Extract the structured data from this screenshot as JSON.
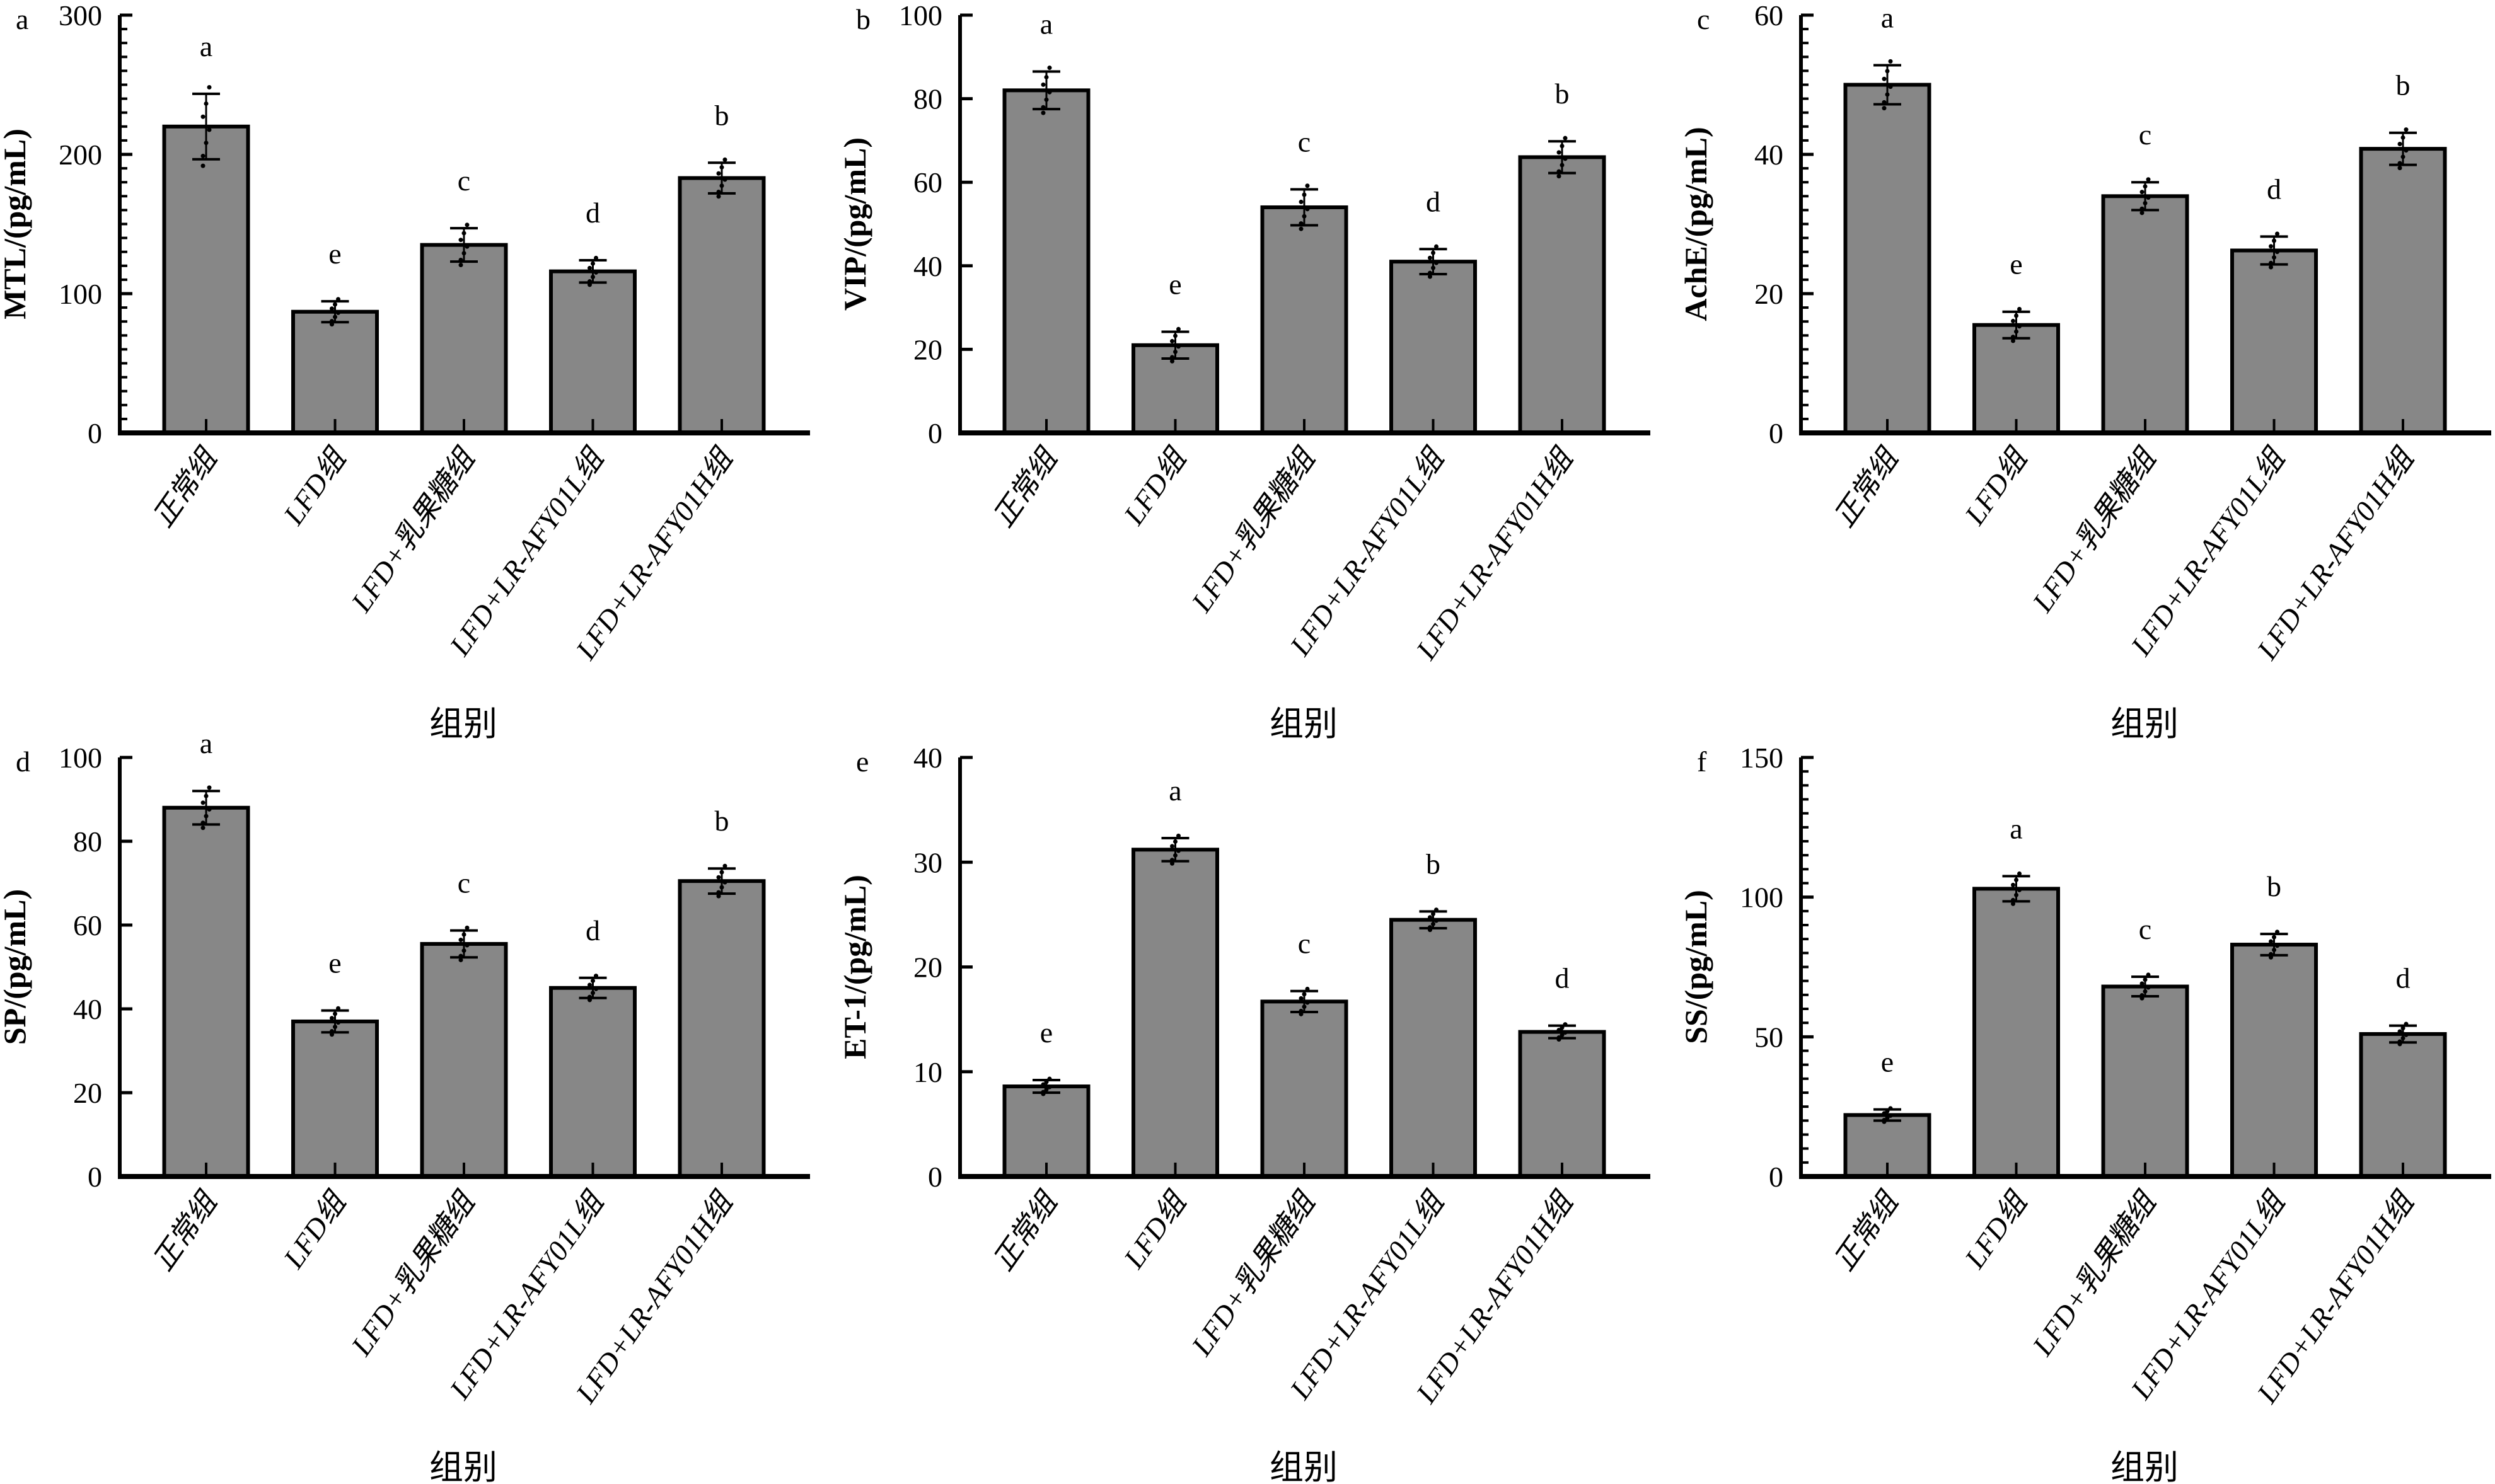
{
  "figure": {
    "bar_color": "#878787",
    "edge_color": "#000000"
  },
  "chart_data": [
    {
      "panel": "a",
      "type": "bar",
      "title": "",
      "xlabel": "组别",
      "ylabel": "MTL/(pg/mL)",
      "categories": [
        "正常组",
        "LFD组",
        "LFD+乳果糖组",
        "LFD+LR-AFY01L组",
        "LFD+LR-AFY01H组"
      ],
      "values": [
        220,
        87,
        135,
        116,
        183
      ],
      "errors": [
        23.5,
        7.5,
        12,
        8,
        11
      ],
      "significance": [
        "a",
        "e",
        "c",
        "d",
        "b"
      ],
      "ylim": [
        0,
        300
      ],
      "yticks": [
        0,
        100,
        200,
        300
      ],
      "minor_step": 10,
      "grid": false,
      "legend": "none"
    },
    {
      "panel": "b",
      "type": "bar",
      "title": "",
      "xlabel": "组别",
      "ylabel": "VIP/(pg/mL)",
      "categories": [
        "正常组",
        "LFD组",
        "LFD+乳果糖组",
        "LFD+LR-AFY01L组",
        "LFD+LR-AFY01H组"
      ],
      "values": [
        82,
        21,
        54,
        41,
        66
      ],
      "errors": [
        4.5,
        3.2,
        4.3,
        3,
        3.8
      ],
      "significance": [
        "a",
        "e",
        "c",
        "d",
        "b"
      ],
      "ylim": [
        0,
        100
      ],
      "yticks": [
        0,
        20,
        40,
        60,
        80,
        100
      ],
      "minor_step": null,
      "grid": false,
      "legend": "none"
    },
    {
      "panel": "c",
      "type": "bar",
      "title": "",
      "xlabel": "组别",
      "ylabel": "AchE/(pg/mL)",
      "categories": [
        "正常组",
        "LFD组",
        "LFD+乳果糖组",
        "LFD+LR-AFY01L组",
        "LFD+LR-AFY01H组"
      ],
      "values": [
        50,
        15.5,
        34,
        26.2,
        40.8
      ],
      "errors": [
        2.8,
        1.9,
        2.0,
        2.0,
        2.3
      ],
      "significance": [
        "a",
        "e",
        "c",
        "d",
        "b"
      ],
      "ylim": [
        0,
        60
      ],
      "yticks": [
        0,
        20,
        40,
        60
      ],
      "minor_step": 2,
      "grid": false,
      "legend": "none"
    },
    {
      "panel": "d",
      "type": "bar",
      "title": "",
      "xlabel": "组别",
      "ylabel": "SP/(pg/mL)",
      "categories": [
        "正常组",
        "LFD组",
        "LFD+乳果糖组",
        "LFD+LR-AFY01L组",
        "LFD+LR-AFY01H组"
      ],
      "values": [
        88,
        37,
        55.5,
        45,
        70.5
      ],
      "errors": [
        4,
        2.6,
        3.2,
        2.4,
        3
      ],
      "significance": [
        "a",
        "e",
        "c",
        "d",
        "b"
      ],
      "ylim": [
        0,
        100
      ],
      "yticks": [
        0,
        20,
        40,
        60,
        80,
        100
      ],
      "minor_step": null,
      "grid": false,
      "legend": "none"
    },
    {
      "panel": "e",
      "type": "bar",
      "title": "",
      "xlabel": "组别",
      "ylabel": "ET-1/(pg/mL)",
      "categories": [
        "正常组",
        "LFD组",
        "LFD+乳果糖组",
        "LFD+LR-AFY01L组",
        "LFD+LR-AFY01H组"
      ],
      "values": [
        8.6,
        31.2,
        16.7,
        24.5,
        13.8
      ],
      "errors": [
        0.6,
        1.1,
        1.0,
        0.8,
        0.6
      ],
      "significance": [
        "e",
        "a",
        "c",
        "b",
        "d"
      ],
      "ylim": [
        0,
        40
      ],
      "yticks": [
        0,
        10,
        20,
        30,
        40
      ],
      "minor_step": null,
      "grid": false,
      "legend": "none"
    },
    {
      "panel": "f",
      "type": "bar",
      "title": "",
      "xlabel": "组别",
      "ylabel": "SS/(pg/mL)",
      "categories": [
        "正常组",
        "LFD组",
        "LFD+乳果糖组",
        "LFD+LR-AFY01L组",
        "LFD+LR-AFY01H组"
      ],
      "values": [
        22,
        103,
        68,
        83,
        51
      ],
      "errors": [
        2,
        4.5,
        3.5,
        3.8,
        3
      ],
      "significance": [
        "e",
        "a",
        "c",
        "b",
        "d"
      ],
      "ylim": [
        0,
        150
      ],
      "yticks": [
        0,
        50,
        100,
        150
      ],
      "minor_step": 5,
      "grid": false,
      "legend": "none"
    }
  ]
}
